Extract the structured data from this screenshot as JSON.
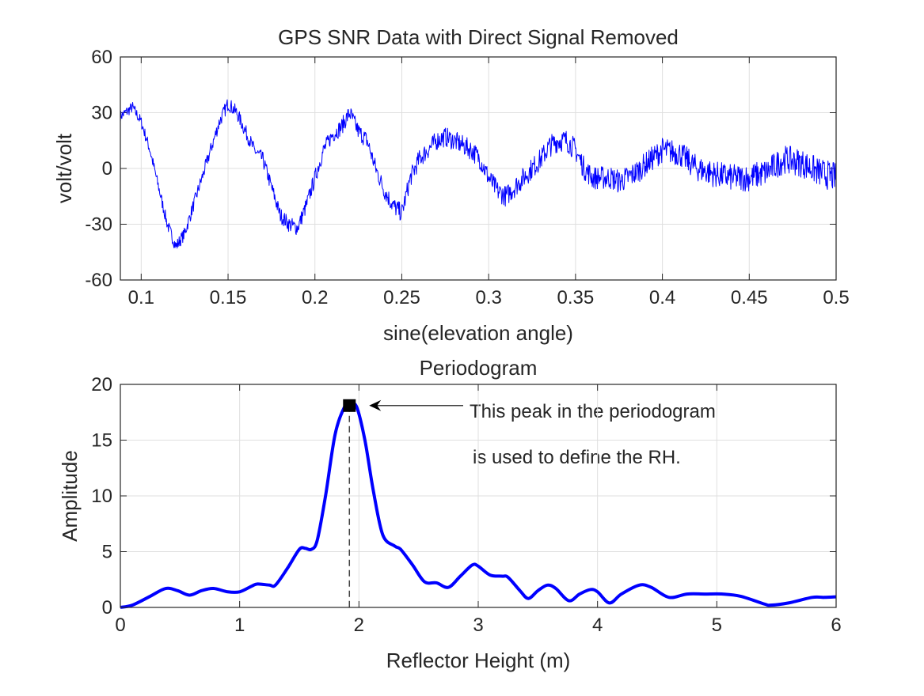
{
  "chart_data": [
    {
      "type": "line",
      "title": "GPS SNR Data with Direct Signal Removed",
      "xlabel": "sine(elevation angle)",
      "ylabel": "volt/volt",
      "xlim": [
        0.088,
        0.5
      ],
      "ylim": [
        -60,
        60
      ],
      "xticks": [
        0.1,
        0.15,
        0.2,
        0.25,
        0.3,
        0.35,
        0.4,
        0.45,
        0.5
      ],
      "xtick_labels": [
        "0.1",
        "0.15",
        "0.2",
        "0.25",
        "0.3",
        "0.35",
        "0.4",
        "0.45",
        "0.5"
      ],
      "yticks": [
        -60,
        -30,
        0,
        30,
        60
      ],
      "ytick_labels": [
        "-60",
        "-30",
        "0",
        "30",
        "60"
      ],
      "grid": true,
      "color": "#0000ff",
      "noisy": true,
      "x": [
        0.088,
        0.095,
        0.1,
        0.105,
        0.11,
        0.115,
        0.12,
        0.125,
        0.13,
        0.135,
        0.14,
        0.145,
        0.15,
        0.155,
        0.16,
        0.165,
        0.17,
        0.175,
        0.18,
        0.185,
        0.19,
        0.195,
        0.2,
        0.205,
        0.21,
        0.215,
        0.22,
        0.225,
        0.23,
        0.235,
        0.24,
        0.245,
        0.25,
        0.255,
        0.26,
        0.265,
        0.27,
        0.275,
        0.28,
        0.29,
        0.295,
        0.3,
        0.305,
        0.31,
        0.315,
        0.32,
        0.325,
        0.33,
        0.335,
        0.34,
        0.345,
        0.35,
        0.355,
        0.36,
        0.37,
        0.375,
        0.38,
        0.385,
        0.39,
        0.4,
        0.41,
        0.42,
        0.43,
        0.44,
        0.45,
        0.46,
        0.47,
        0.48,
        0.49,
        0.5
      ],
      "y": [
        28,
        33,
        25,
        10,
        -10,
        -30,
        -42,
        -35,
        -20,
        -5,
        10,
        25,
        35,
        30,
        20,
        10,
        5,
        -10,
        -25,
        -30,
        -32,
        -20,
        -5,
        10,
        18,
        22,
        30,
        20,
        15,
        0,
        -12,
        -20,
        -24,
        -5,
        5,
        10,
        15,
        17,
        15,
        10,
        5,
        -5,
        -12,
        -15,
        -10,
        -5,
        0,
        5,
        12,
        15,
        15,
        10,
        0,
        -5,
        -5,
        -7,
        -5,
        -2,
        2,
        10,
        8,
        0,
        -3,
        -5,
        -5,
        -2,
        5,
        3,
        -2,
        -5
      ]
    },
    {
      "type": "line",
      "title": "Periodogram",
      "xlabel": "Reflector Height (m)",
      "ylabel": "Amplitude",
      "xlim": [
        0,
        6
      ],
      "ylim": [
        0,
        20
      ],
      "xticks": [
        0,
        1,
        2,
        3,
        4,
        5,
        6
      ],
      "xtick_labels": [
        "0",
        "1",
        "2",
        "3",
        "4",
        "5",
        "6"
      ],
      "yticks": [
        0,
        5,
        10,
        15,
        20
      ],
      "ytick_labels": [
        "0",
        "5",
        "10",
        "15",
        "20"
      ],
      "grid": true,
      "color": "#0000ff",
      "x": [
        0,
        0.1,
        0.25,
        0.38,
        0.48,
        0.58,
        0.68,
        0.78,
        0.9,
        1.0,
        1.1,
        1.15,
        1.25,
        1.3,
        1.4,
        1.5,
        1.55,
        1.6,
        1.65,
        1.72,
        1.8,
        1.88,
        1.92,
        1.98,
        2.05,
        2.12,
        2.2,
        2.3,
        2.35,
        2.45,
        2.55,
        2.65,
        2.75,
        2.85,
        2.95,
        3.0,
        3.1,
        3.2,
        3.25,
        3.35,
        3.42,
        3.5,
        3.58,
        3.65,
        3.76,
        3.85,
        3.94,
        4.0,
        4.1,
        4.2,
        4.35,
        4.45,
        4.6,
        4.75,
        4.9,
        5.05,
        5.2,
        5.4,
        5.45,
        5.6,
        5.8,
        5.9,
        6.0
      ],
      "y": [
        0,
        0.2,
        1.0,
        1.7,
        1.5,
        1.1,
        1.5,
        1.7,
        1.4,
        1.4,
        1.9,
        2.1,
        2.0,
        2.0,
        3.5,
        5.2,
        5.3,
        5.2,
        6.0,
        10,
        15.5,
        18,
        18.2,
        18,
        15,
        10.5,
        6.5,
        5.5,
        5.2,
        3.8,
        2.3,
        2.2,
        1.8,
        2.8,
        3.8,
        3.7,
        2.9,
        2.8,
        2.7,
        1.5,
        0.8,
        1.5,
        2.0,
        1.7,
        0.6,
        1.2,
        1.6,
        1.4,
        0.4,
        1.2,
        2.0,
        1.8,
        0.9,
        1.2,
        1.2,
        1.2,
        1.0,
        0.3,
        0.2,
        0.4,
        0.9,
        0.9,
        0.95
      ],
      "peak": {
        "x": 1.92,
        "y": 18.1
      },
      "annotation": {
        "line1": "This peak in the periodogram",
        "line2": "is used to define the RH."
      }
    }
  ]
}
